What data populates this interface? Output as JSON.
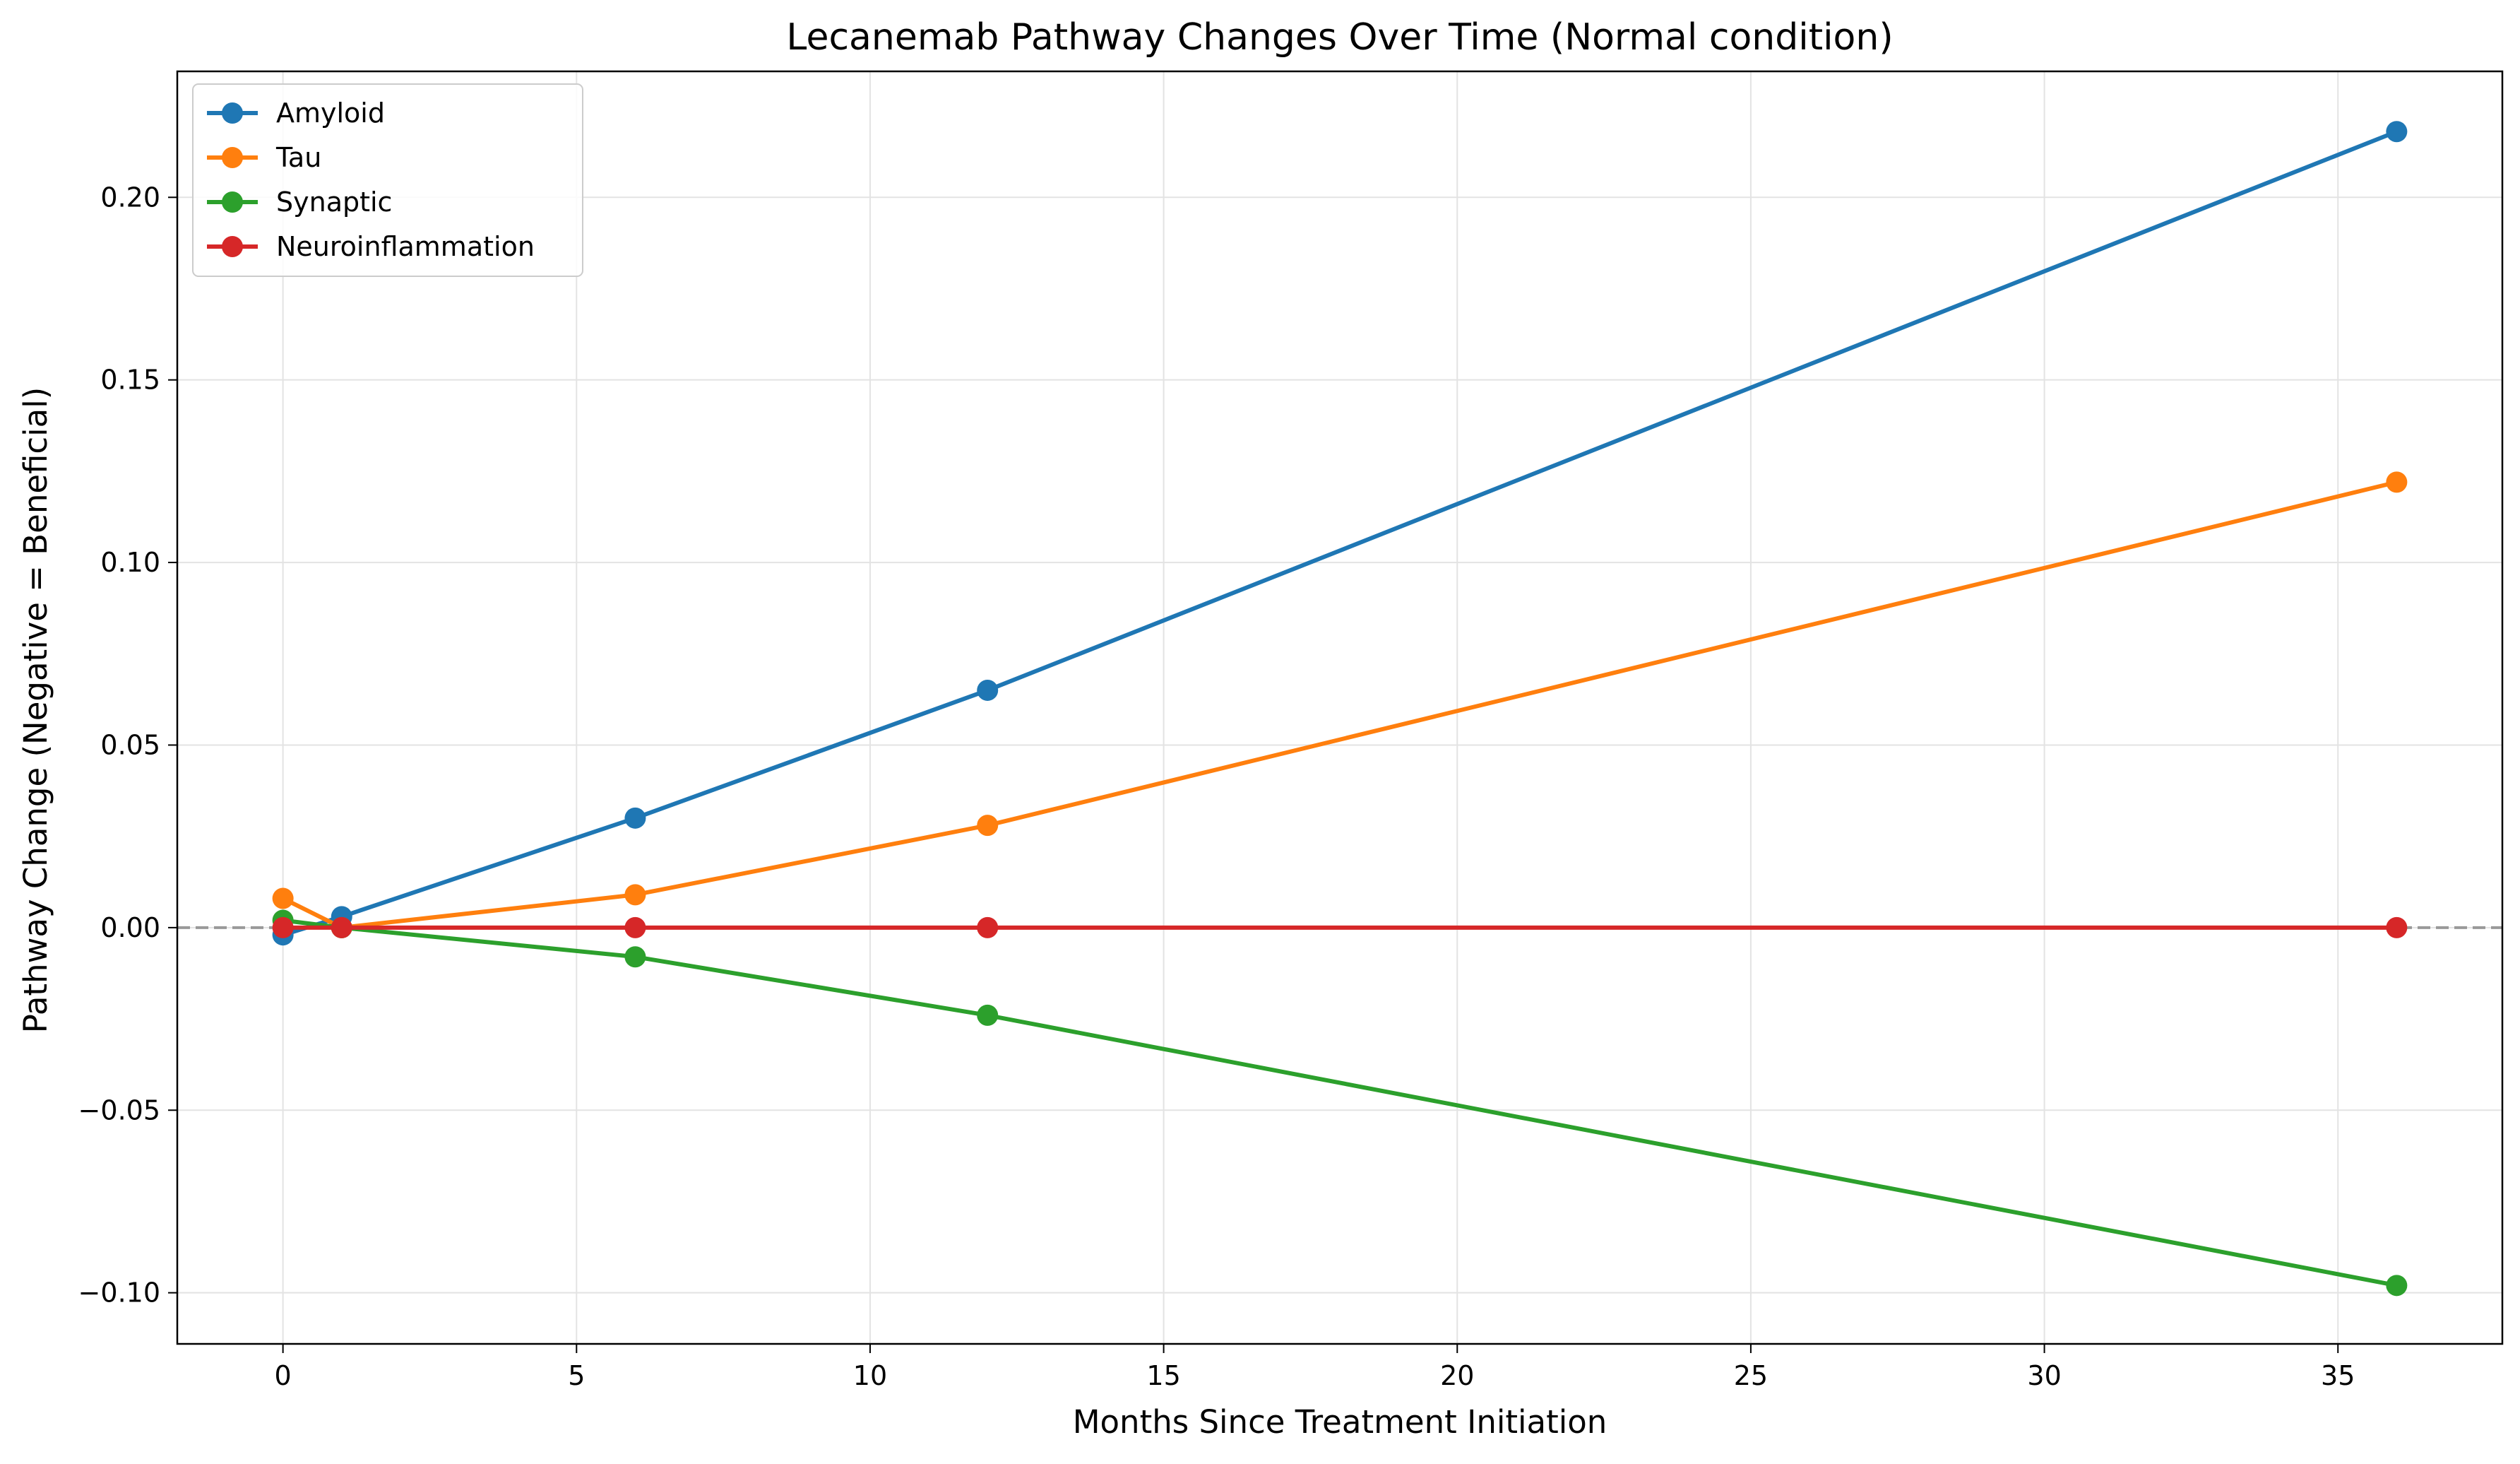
{
  "chart_data": {
    "type": "line",
    "title": "Lecanemab Pathway Changes Over Time (Normal condition)",
    "xlabel": "Months Since Treatment Initiation",
    "ylabel": "Pathway Change (Negative = Beneficial)",
    "xlim": [
      -1.8,
      37.8
    ],
    "ylim": [
      -0.114,
      0.2345
    ],
    "xticks": [
      0,
      5,
      10,
      15,
      20,
      25,
      30,
      35
    ],
    "xtick_labels": [
      "0",
      "5",
      "10",
      "15",
      "20",
      "25",
      "30",
      "35"
    ],
    "yticks": [
      -0.1,
      -0.05,
      0.0,
      0.05,
      0.1,
      0.15,
      0.2
    ],
    "ytick_labels": [
      "−0.10",
      "−0.05",
      "0.00",
      "0.05",
      "0.10",
      "0.15",
      "0.20"
    ],
    "grid": true,
    "legend_position": "upper left",
    "reference_line": {
      "y": 0,
      "style": "dashed",
      "color": "#999999"
    },
    "x": [
      0,
      1,
      6,
      12,
      36
    ],
    "series": [
      {
        "name": "Amyloid",
        "color": "#1f77b4",
        "values": [
          -0.002,
          0.003,
          0.03,
          0.065,
          0.218
        ]
      },
      {
        "name": "Tau",
        "color": "#ff7f0e",
        "values": [
          0.008,
          0.0,
          0.009,
          0.028,
          0.122
        ]
      },
      {
        "name": "Synaptic",
        "color": "#2ca02c",
        "values": [
          0.002,
          0.0,
          -0.008,
          -0.024,
          -0.098
        ]
      },
      {
        "name": "Neuroinflammation",
        "color": "#d62728",
        "values": [
          0.0,
          0.0,
          0.0,
          0.0,
          0.0
        ]
      }
    ]
  }
}
